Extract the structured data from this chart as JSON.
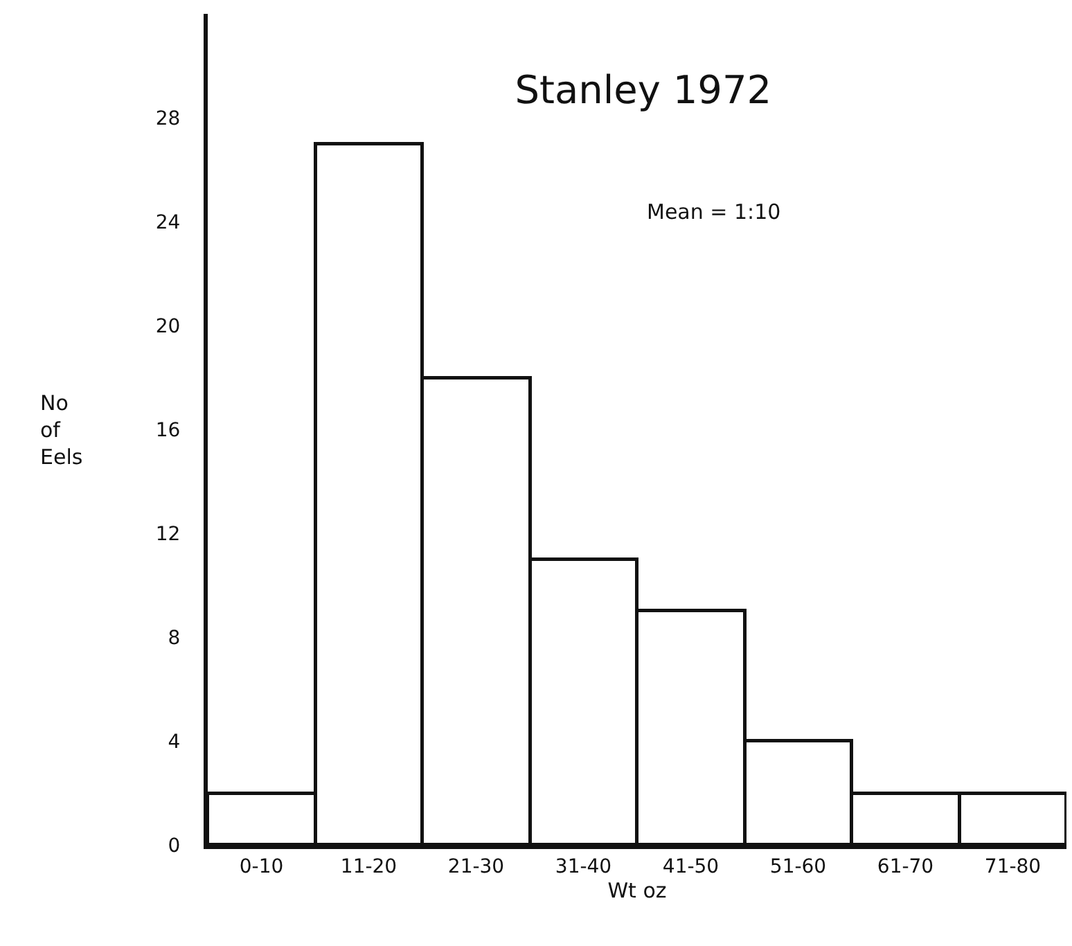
{
  "chart_data": {
    "type": "bar",
    "title": "Stanley 1972",
    "annotations": [
      "Mean = 1:10"
    ],
    "xlabel": "Wt oz",
    "ylabel": "No of Eels",
    "categories": [
      "0-10",
      "11-20",
      "21-30",
      "31-40",
      "41-50",
      "51-60",
      "61-70",
      "71-80"
    ],
    "values": [
      2,
      27,
      18,
      11,
      9,
      4,
      2,
      2
    ],
    "color": "#ffffff",
    "ylim": [
      0,
      32
    ],
    "yticks": [
      0,
      4,
      8,
      12,
      16,
      20,
      24,
      28
    ],
    "grid": false,
    "legend": false
  }
}
